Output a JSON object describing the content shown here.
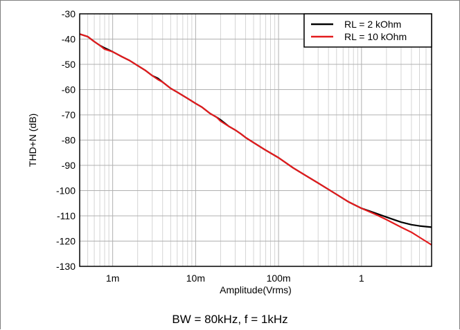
{
  "chart_data": {
    "type": "line",
    "title": "",
    "xlabel": "Amplitude(Vrms)",
    "ylabel": "THD+N (dB)",
    "x_scale": "log",
    "xlim": [
      0.0004,
      7
    ],
    "ylim": [
      -130,
      -30
    ],
    "x_ticks": [
      {
        "value": 0.001,
        "label": "1m"
      },
      {
        "value": 0.01,
        "label": "10m"
      },
      {
        "value": 0.1,
        "label": "100m"
      },
      {
        "value": 1,
        "label": "1"
      }
    ],
    "y_ticks": [
      {
        "value": -30,
        "label": "-30"
      },
      {
        "value": -40,
        "label": "-40"
      },
      {
        "value": -50,
        "label": "-50"
      },
      {
        "value": -60,
        "label": "-60"
      },
      {
        "value": -70,
        "label": "-70"
      },
      {
        "value": -80,
        "label": "-80"
      },
      {
        "value": -90,
        "label": "-90"
      },
      {
        "value": -100,
        "label": "-100"
      },
      {
        "value": -110,
        "label": "-110"
      },
      {
        "value": -120,
        "label": "-120"
      },
      {
        "value": -130,
        "label": "-130"
      }
    ],
    "grid": true,
    "legend_position": "top-right",
    "series": [
      {
        "name": "RL = 2 kOhm",
        "color": "#000000",
        "x": [
          0.0004,
          0.0005,
          0.0006,
          0.0007,
          0.0008,
          0.001,
          0.0013,
          0.0016,
          0.002,
          0.0025,
          0.003,
          0.0035,
          0.004,
          0.005,
          0.006,
          0.008,
          0.01,
          0.012,
          0.015,
          0.018,
          0.02,
          0.025,
          0.03,
          0.035,
          0.04,
          0.05,
          0.07,
          0.1,
          0.15,
          0.2,
          0.3,
          0.5,
          0.7,
          1,
          1.5,
          2,
          3,
          4,
          5,
          7
        ],
        "y": [
          -38,
          -39,
          -41,
          -42.5,
          -43.5,
          -45,
          -47,
          -48.5,
          -50.5,
          -52.5,
          -54.5,
          -55.5,
          -57,
          -59.5,
          -61,
          -63.5,
          -65.5,
          -67,
          -69.5,
          -71,
          -72,
          -74.5,
          -76,
          -77.5,
          -79,
          -81,
          -84,
          -87,
          -91,
          -93.5,
          -97,
          -101.5,
          -104.5,
          -107,
          -109,
          -110.5,
          -112.5,
          -113.5,
          -114,
          -114.5
        ]
      },
      {
        "name": "RL = 10 kOhm",
        "color": "#e31a1c",
        "x": [
          0.0004,
          0.0005,
          0.0006,
          0.0007,
          0.0008,
          0.001,
          0.0013,
          0.0016,
          0.002,
          0.0025,
          0.003,
          0.0035,
          0.004,
          0.005,
          0.006,
          0.008,
          0.01,
          0.012,
          0.015,
          0.018,
          0.02,
          0.025,
          0.03,
          0.035,
          0.04,
          0.05,
          0.07,
          0.1,
          0.15,
          0.2,
          0.3,
          0.5,
          0.7,
          1,
          1.5,
          2,
          3,
          4,
          5,
          7
        ],
        "y": [
          -38,
          -39,
          -41,
          -42.5,
          -44,
          -45,
          -47,
          -48.5,
          -50.5,
          -52.5,
          -54.5,
          -56,
          -57,
          -59.5,
          -61,
          -63.5,
          -65.5,
          -67,
          -69.5,
          -71,
          -72.5,
          -74.5,
          -76,
          -77.5,
          -79,
          -81,
          -84,
          -87,
          -91,
          -93.5,
          -97,
          -101.5,
          -104.5,
          -107,
          -109.5,
          -111.5,
          -114.5,
          -116.5,
          -118.5,
          -121.5
        ]
      }
    ]
  },
  "caption": "BW = 80kHz, f = 1kHz"
}
